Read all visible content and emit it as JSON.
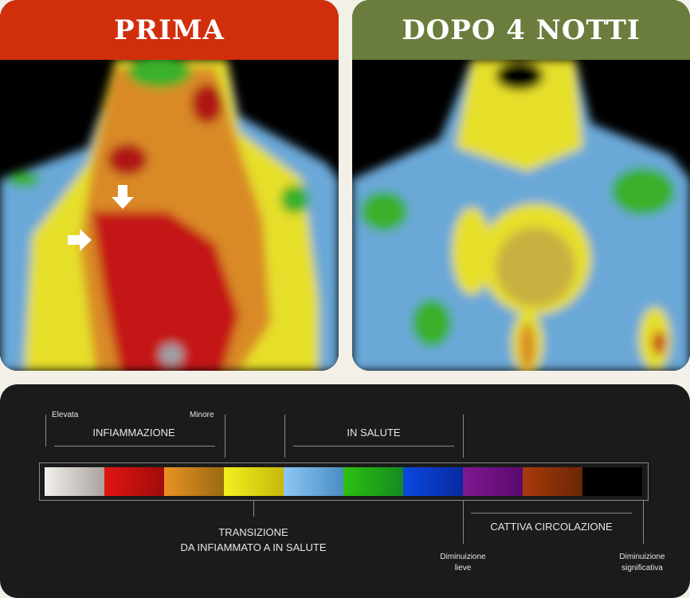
{
  "before": {
    "title": "PRIMA",
    "header_color": "#d12f0c"
  },
  "after": {
    "title": "DOPO 4 NOTTI",
    "header_color": "#6b7d3c"
  },
  "legend": {
    "high_label": "Elevata",
    "low_label": "Minore",
    "inflammation": "INFIAMMAZIONE",
    "healthy": "IN SALUTE",
    "transition_line1": "TRANSIZIONE",
    "transition_line2": "DA INFIAMMATO A IN SALUTE",
    "poor_circulation": "CATTIVA CIRCOLAZIONE",
    "mild_decrease_1": "Diminuizione",
    "mild_decrease_2": "lieve",
    "significant_decrease_1": "Diminuizione",
    "significant_decrease_2": "significativa",
    "swatches": [
      [
        "#f2f0ec",
        "#a9a39e"
      ],
      [
        "#e01510",
        "#a00c0c"
      ],
      [
        "#e99322",
        "#9a6a10"
      ],
      [
        "#f2f020",
        "#c6b80a"
      ],
      [
        "#8cc6f4",
        "#4a8ec4"
      ],
      [
        "#2ec010",
        "#158a20"
      ],
      [
        "#0a48e0",
        "#0a2aa0"
      ],
      [
        "#801890",
        "#5a0a70"
      ],
      [
        "#a83a0a",
        "#6a2606"
      ],
      [
        "#000000",
        "#000000"
      ]
    ]
  }
}
